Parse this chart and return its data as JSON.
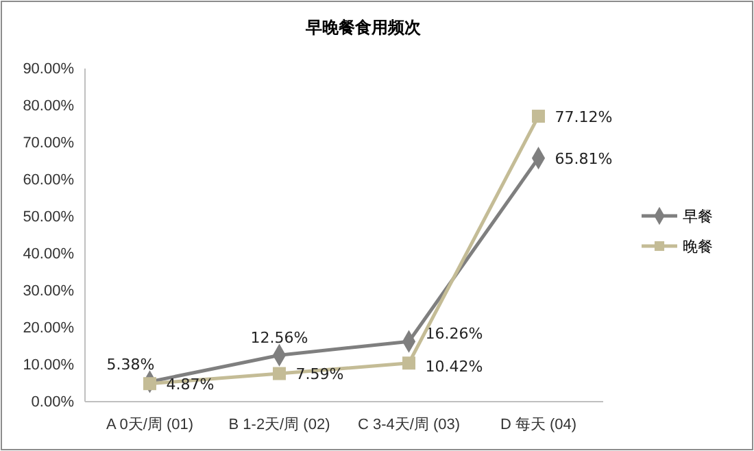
{
  "chart_data": {
    "type": "line",
    "title": "早晚餐食用频次",
    "categories": [
      "A  0天/周 (01)",
      "B  1-2天/周 (02)",
      "C  3-4天/周 (03)",
      "D  每天 (04)"
    ],
    "series": [
      {
        "name": "早餐",
        "color": "#7f7f7f",
        "marker": "diamond",
        "values": [
          5.38,
          12.56,
          16.26,
          65.81
        ],
        "value_labels": [
          "5.38%",
          "12.56%",
          "16.26%",
          "65.81%"
        ]
      },
      {
        "name": "晚餐",
        "color": "#c4bc96",
        "marker": "square",
        "values": [
          4.87,
          7.59,
          10.42,
          77.12
        ],
        "value_labels": [
          "4.87%",
          "7.59%",
          "10.42%",
          "77.12%"
        ]
      }
    ],
    "ylim": [
      0,
      90
    ],
    "yticks": [
      {
        "value": 0,
        "label": "0.00%"
      },
      {
        "value": 10,
        "label": "10.00%"
      },
      {
        "value": 20,
        "label": "20.00%"
      },
      {
        "value": 30,
        "label": "30.00%"
      },
      {
        "value": 40,
        "label": "40.00%"
      },
      {
        "value": 50,
        "label": "50.00%"
      },
      {
        "value": 60,
        "label": "60.00%"
      },
      {
        "value": 70,
        "label": "70.00%"
      },
      {
        "value": 80,
        "label": "80.00%"
      },
      {
        "value": 90,
        "label": "90.00%"
      }
    ],
    "grid": false,
    "legend": "right",
    "line_style": "solid"
  }
}
